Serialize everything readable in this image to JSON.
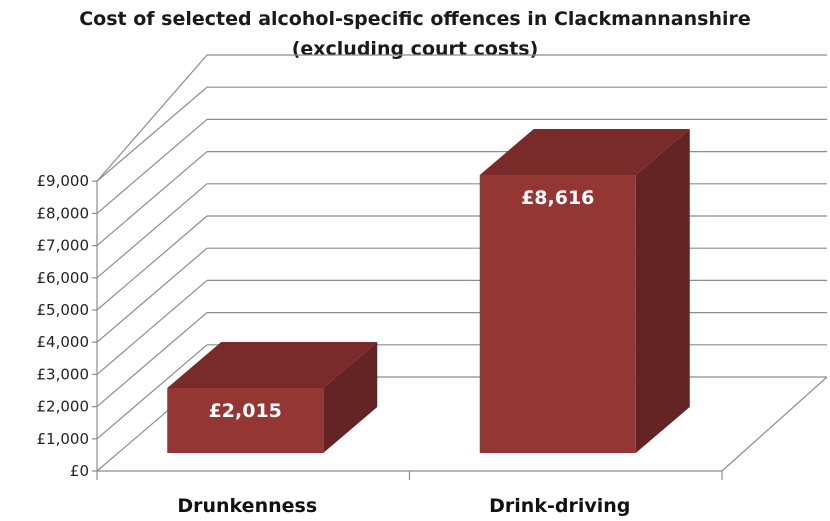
{
  "chart_data": {
    "type": "bar",
    "title": "Cost of selected alcohol-specific offences in Clackmannanshire",
    "subtitle": "(excluding court costs)",
    "categories": [
      "Drunkenness",
      "Drink-driving"
    ],
    "values": [
      2015,
      8616
    ],
    "data_labels": [
      "£2,015",
      "£8,616"
    ],
    "ylim": [
      0,
      9000
    ],
    "yticks": [
      "£0",
      "£1,000",
      "£2,000",
      "£3,000",
      "£4,000",
      "£5,000",
      "£6,000",
      "£7,000",
      "£8,000",
      "£9,000"
    ],
    "grid": true,
    "style": "3d-column",
    "colors": {
      "bar_front": "#943634",
      "bar_top": "#7a2b29",
      "bar_side": "#632423",
      "grid": "#8c8c8c",
      "text": "#000000"
    }
  }
}
